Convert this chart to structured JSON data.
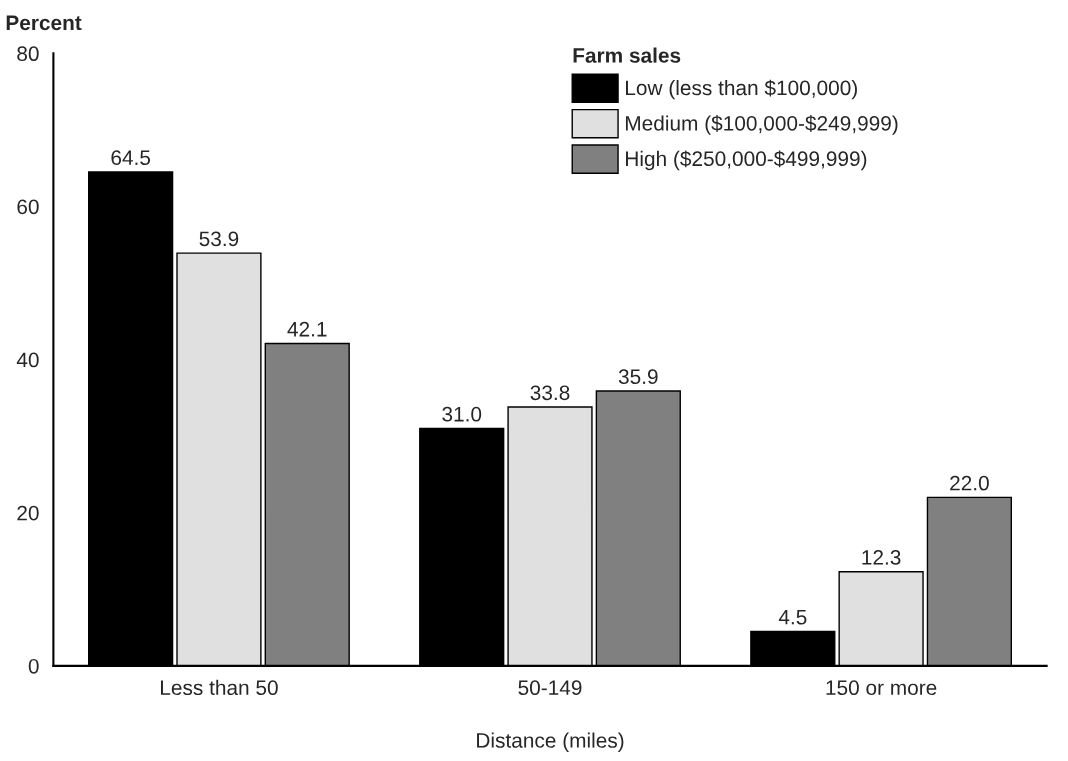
{
  "chart_data": {
    "type": "bar",
    "ylabel": "Percent",
    "xlabel": "Distance (miles)",
    "legend_title": "Farm sales",
    "categories": [
      "Less than 50",
      "50-149",
      "150 or more"
    ],
    "series": [
      {
        "name": "Low (less than $100,000)",
        "color": "#000000",
        "values": [
          64.5,
          31.0,
          4.5
        ],
        "value_labels": [
          "64.5",
          "31.0",
          "4.5"
        ]
      },
      {
        "name": "Medium ($100,000-$249,999)",
        "color": "#e0e0e0",
        "values": [
          53.9,
          33.8,
          12.3
        ],
        "value_labels": [
          "53.9",
          "33.8",
          "12.3"
        ]
      },
      {
        "name": "High ($250,000-$499,999)",
        "color": "#808080",
        "values": [
          42.1,
          35.9,
          22.0
        ],
        "value_labels": [
          "42.1",
          "35.9",
          "22.0"
        ]
      }
    ],
    "ylim": [
      0,
      80
    ],
    "yticks": [
      0,
      20,
      40,
      60,
      80
    ],
    "grid": false,
    "legend": "top right"
  }
}
